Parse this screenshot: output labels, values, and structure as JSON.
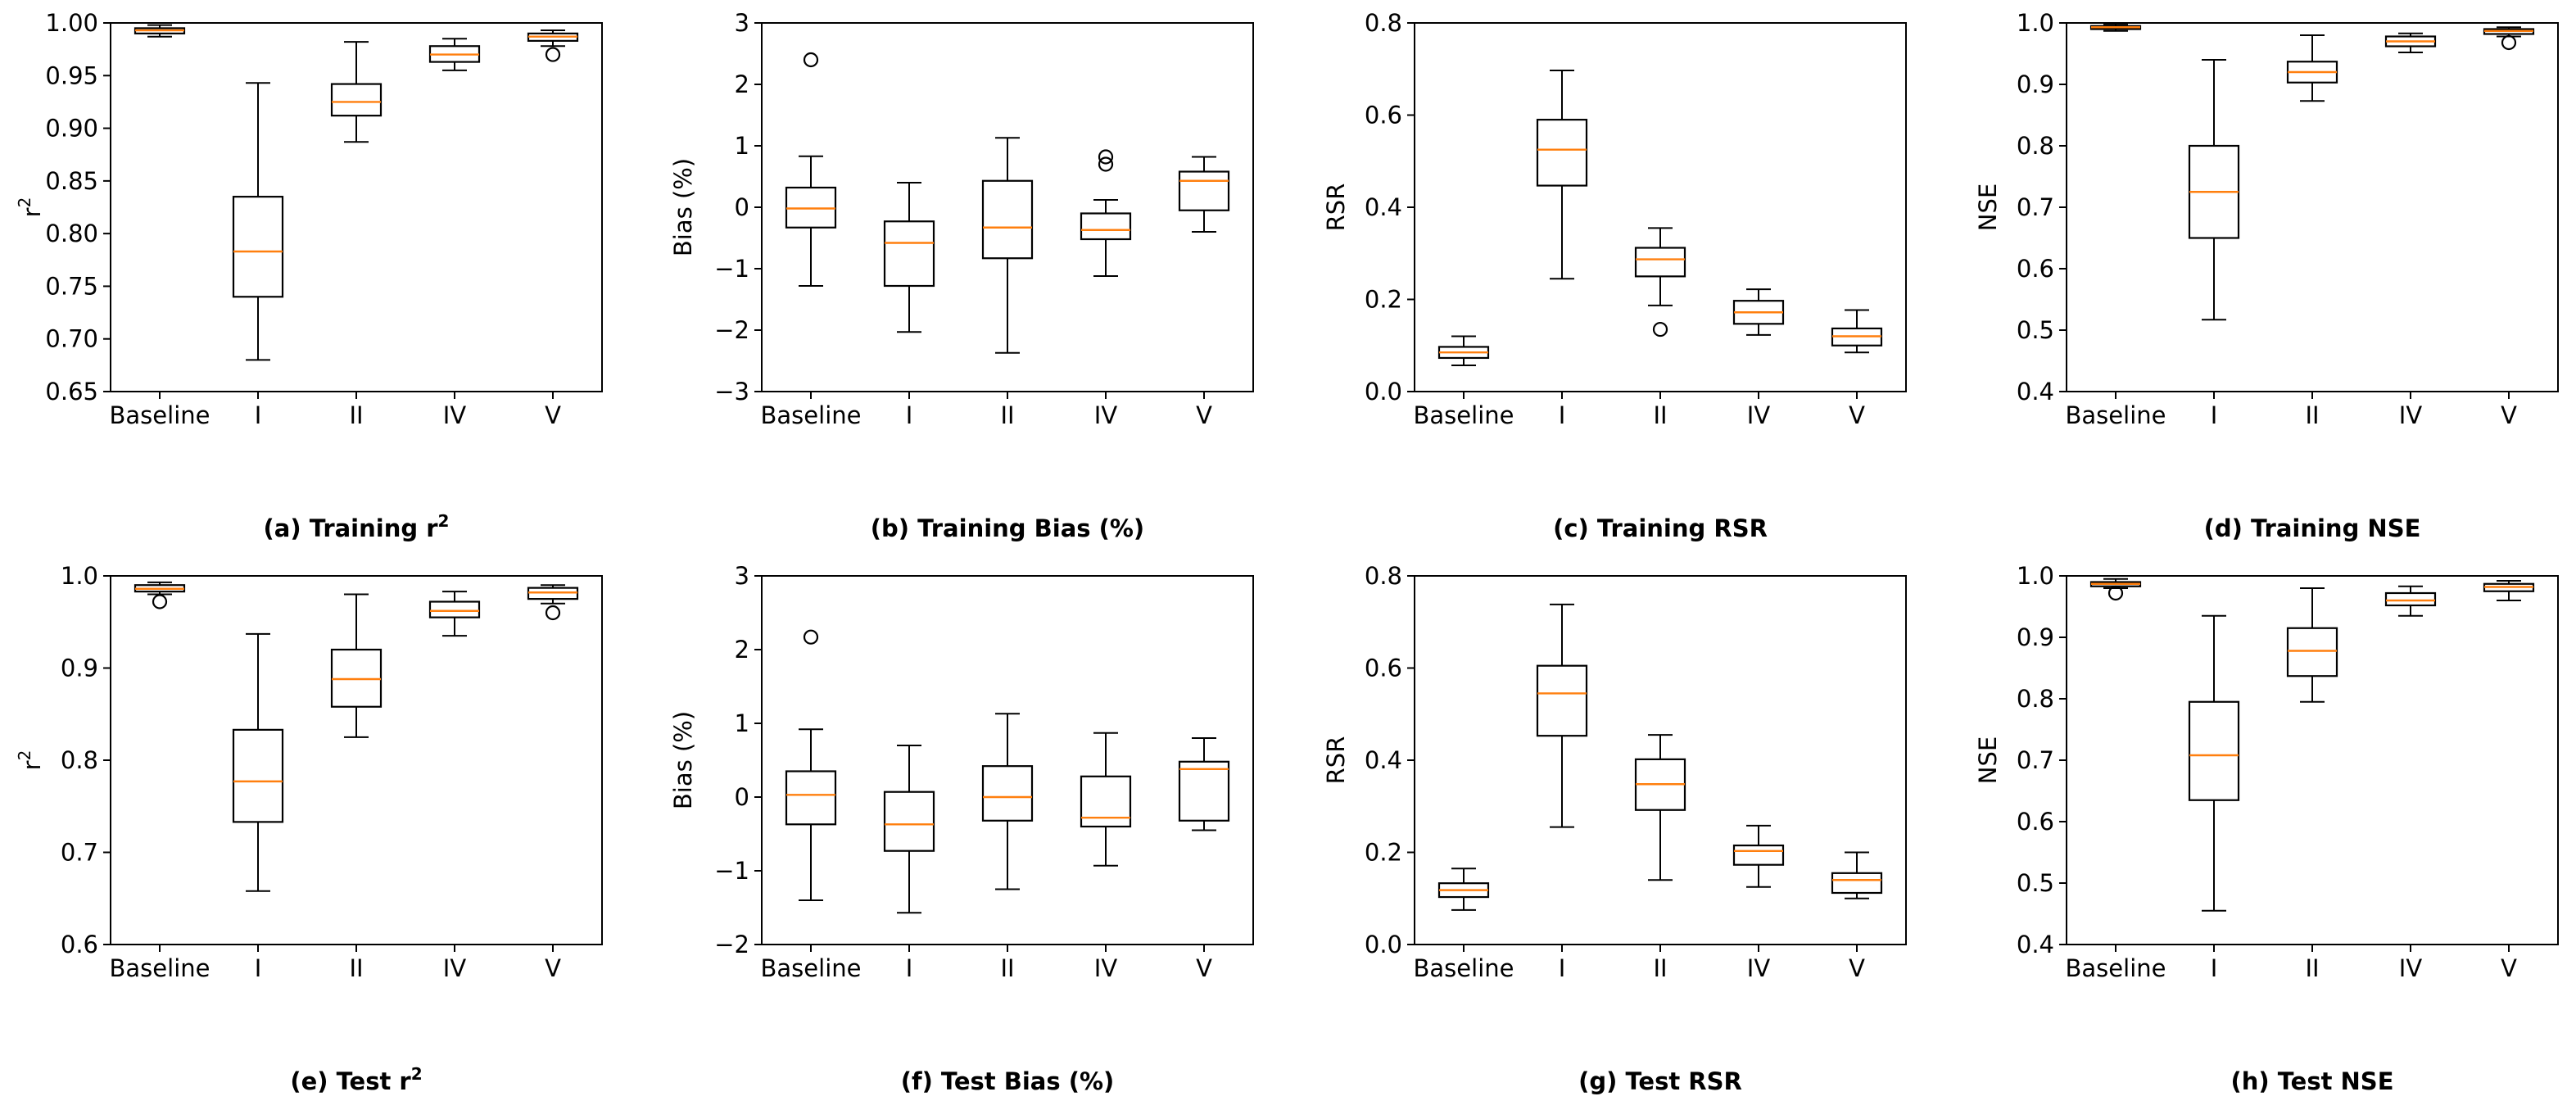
{
  "figure": {
    "panel_count": 8,
    "box_color": "#000000",
    "median_color": "#ff7f0e"
  },
  "chart_data": [
    {
      "id": "a",
      "type": "boxplot",
      "caption": "(a) Training r",
      "caption_sup": "2",
      "ylabel": "r",
      "ylabel_sup": "2",
      "ylim": [
        0.65,
        1.0
      ],
      "yticks": [
        0.65,
        0.7,
        0.75,
        0.8,
        0.85,
        0.9,
        0.95,
        1.0
      ],
      "ytick_labels": [
        "0.65",
        "0.70",
        "0.75",
        "0.80",
        "0.85",
        "0.90",
        "0.95",
        "1.00"
      ],
      "categories": [
        "Baseline",
        "I",
        "II",
        "IV",
        "V"
      ],
      "boxes": [
        {
          "wlo": 0.987,
          "q1": 0.99,
          "med": 0.993,
          "q3": 0.995,
          "whi": 0.998,
          "outliers": []
        },
        {
          "wlo": 0.68,
          "q1": 0.74,
          "med": 0.783,
          "q3": 0.835,
          "whi": 0.943,
          "outliers": []
        },
        {
          "wlo": 0.887,
          "q1": 0.912,
          "med": 0.925,
          "q3": 0.942,
          "whi": 0.982,
          "outliers": []
        },
        {
          "wlo": 0.955,
          "q1": 0.963,
          "med": 0.97,
          "q3": 0.978,
          "whi": 0.985,
          "outliers": []
        },
        {
          "wlo": 0.978,
          "q1": 0.983,
          "med": 0.987,
          "q3": 0.99,
          "whi": 0.993,
          "outliers": [
            0.97
          ]
        }
      ]
    },
    {
      "id": "b",
      "type": "boxplot",
      "caption": "(b) Training Bias (%)",
      "ylabel": "Bias (%)",
      "ylim": [
        -3,
        3
      ],
      "yticks": [
        -3,
        -2,
        -1,
        0,
        1,
        2,
        3
      ],
      "ytick_labels": [
        "−3",
        "−2",
        "−1",
        "0",
        "1",
        "2",
        "3"
      ],
      "categories": [
        "Baseline",
        "I",
        "II",
        "IV",
        "V"
      ],
      "boxes": [
        {
          "wlo": -1.28,
          "q1": -0.33,
          "med": -0.02,
          "q3": 0.32,
          "whi": 0.83,
          "outliers": [
            2.4
          ]
        },
        {
          "wlo": -2.03,
          "q1": -1.28,
          "med": -0.58,
          "q3": -0.23,
          "whi": 0.4,
          "outliers": []
        },
        {
          "wlo": -2.37,
          "q1": -0.83,
          "med": -0.33,
          "q3": 0.43,
          "whi": 1.13,
          "outliers": []
        },
        {
          "wlo": -1.12,
          "q1": -0.52,
          "med": -0.37,
          "q3": -0.1,
          "whi": 0.12,
          "outliers": [
            0.7,
            0.82
          ]
        },
        {
          "wlo": -0.4,
          "q1": -0.05,
          "med": 0.43,
          "q3": 0.58,
          "whi": 0.82,
          "outliers": []
        }
      ]
    },
    {
      "id": "c",
      "type": "boxplot",
      "caption": "(c) Training RSR",
      "ylabel": "RSR",
      "ylim": [
        0.0,
        0.8
      ],
      "yticks": [
        0.0,
        0.2,
        0.4,
        0.6,
        0.8
      ],
      "ytick_labels": [
        "0.0",
        "0.2",
        "0.4",
        "0.6",
        "0.8"
      ],
      "categories": [
        "Baseline",
        "I",
        "II",
        "IV",
        "V"
      ],
      "boxes": [
        {
          "wlo": 0.057,
          "q1": 0.073,
          "med": 0.085,
          "q3": 0.097,
          "whi": 0.12,
          "outliers": []
        },
        {
          "wlo": 0.245,
          "q1": 0.447,
          "med": 0.525,
          "q3": 0.59,
          "whi": 0.697,
          "outliers": []
        },
        {
          "wlo": 0.187,
          "q1": 0.25,
          "med": 0.287,
          "q3": 0.312,
          "whi": 0.355,
          "outliers": [
            0.135
          ]
        },
        {
          "wlo": 0.123,
          "q1": 0.147,
          "med": 0.172,
          "q3": 0.197,
          "whi": 0.222,
          "outliers": []
        },
        {
          "wlo": 0.085,
          "q1": 0.1,
          "med": 0.12,
          "q3": 0.137,
          "whi": 0.177,
          "outliers": []
        }
      ]
    },
    {
      "id": "d",
      "type": "boxplot",
      "caption": "(d) Training NSE",
      "ylabel": "NSE",
      "ylim": [
        0.4,
        1.0
      ],
      "yticks": [
        0.4,
        0.5,
        0.6,
        0.7,
        0.8,
        0.9,
        1.0
      ],
      "ytick_labels": [
        "0.4",
        "0.5",
        "0.6",
        "0.7",
        "0.8",
        "0.9",
        "1.0"
      ],
      "categories": [
        "Baseline",
        "I",
        "II",
        "IV",
        "V"
      ],
      "boxes": [
        {
          "wlo": 0.987,
          "q1": 0.99,
          "med": 0.993,
          "q3": 0.995,
          "whi": 0.998,
          "outliers": []
        },
        {
          "wlo": 0.517,
          "q1": 0.65,
          "med": 0.725,
          "q3": 0.8,
          "whi": 0.94,
          "outliers": []
        },
        {
          "wlo": 0.873,
          "q1": 0.903,
          "med": 0.92,
          "q3": 0.937,
          "whi": 0.98,
          "outliers": []
        },
        {
          "wlo": 0.952,
          "q1": 0.962,
          "med": 0.97,
          "q3": 0.978,
          "whi": 0.983,
          "outliers": []
        },
        {
          "wlo": 0.978,
          "q1": 0.982,
          "med": 0.987,
          "q3": 0.99,
          "whi": 0.993,
          "outliers": [
            0.968
          ]
        }
      ]
    },
    {
      "id": "e",
      "type": "boxplot",
      "caption": "(e) Test r",
      "caption_sup": "2",
      "ylabel": "r",
      "ylabel_sup": "2",
      "ylim": [
        0.6,
        1.0
      ],
      "yticks": [
        0.6,
        0.7,
        0.8,
        0.9,
        1.0
      ],
      "ytick_labels": [
        "0.6",
        "0.7",
        "0.8",
        "0.9",
        "1.0"
      ],
      "categories": [
        "Baseline",
        "I",
        "II",
        "IV",
        "V"
      ],
      "boxes": [
        {
          "wlo": 0.98,
          "q1": 0.983,
          "med": 0.986,
          "q3": 0.99,
          "whi": 0.993,
          "outliers": [
            0.972
          ]
        },
        {
          "wlo": 0.658,
          "q1": 0.733,
          "med": 0.777,
          "q3": 0.833,
          "whi": 0.937,
          "outliers": []
        },
        {
          "wlo": 0.825,
          "q1": 0.858,
          "med": 0.888,
          "q3": 0.92,
          "whi": 0.98,
          "outliers": []
        },
        {
          "wlo": 0.935,
          "q1": 0.955,
          "med": 0.962,
          "q3": 0.972,
          "whi": 0.983,
          "outliers": []
        },
        {
          "wlo": 0.97,
          "q1": 0.975,
          "med": 0.982,
          "q3": 0.987,
          "whi": 0.99,
          "outliers": [
            0.96
          ]
        }
      ]
    },
    {
      "id": "f",
      "type": "boxplot",
      "caption": "(f) Test Bias (%)",
      "ylabel": "Bias (%)",
      "ylim": [
        -2,
        3
      ],
      "yticks": [
        -2,
        -1,
        0,
        1,
        2,
        3
      ],
      "ytick_labels": [
        "−2",
        "−1",
        "0",
        "1",
        "2",
        "3"
      ],
      "categories": [
        "Baseline",
        "I",
        "II",
        "IV",
        "V"
      ],
      "boxes": [
        {
          "wlo": -1.4,
          "q1": -0.37,
          "med": 0.03,
          "q3": 0.35,
          "whi": 0.92,
          "outliers": [
            2.17
          ]
        },
        {
          "wlo": -1.57,
          "q1": -0.73,
          "med": -0.37,
          "q3": 0.07,
          "whi": 0.7,
          "outliers": []
        },
        {
          "wlo": -1.25,
          "q1": -0.32,
          "med": 0.0,
          "q3": 0.42,
          "whi": 1.13,
          "outliers": []
        },
        {
          "wlo": -0.93,
          "q1": -0.4,
          "med": -0.28,
          "q3": 0.28,
          "whi": 0.87,
          "outliers": []
        },
        {
          "wlo": -0.45,
          "q1": -0.32,
          "med": 0.38,
          "q3": 0.48,
          "whi": 0.8,
          "outliers": []
        }
      ]
    },
    {
      "id": "g",
      "type": "boxplot",
      "caption": "(g) Test RSR",
      "ylabel": "RSR",
      "ylim": [
        0.0,
        0.8
      ],
      "yticks": [
        0.0,
        0.2,
        0.4,
        0.6,
        0.8
      ],
      "ytick_labels": [
        "0.0",
        "0.2",
        "0.4",
        "0.6",
        "0.8"
      ],
      "categories": [
        "Baseline",
        "I",
        "II",
        "IV",
        "V"
      ],
      "boxes": [
        {
          "wlo": 0.075,
          "q1": 0.103,
          "med": 0.118,
          "q3": 0.133,
          "whi": 0.165,
          "outliers": []
        },
        {
          "wlo": 0.255,
          "q1": 0.453,
          "med": 0.545,
          "q3": 0.605,
          "whi": 0.738,
          "outliers": []
        },
        {
          "wlo": 0.14,
          "q1": 0.292,
          "med": 0.348,
          "q3": 0.402,
          "whi": 0.455,
          "outliers": []
        },
        {
          "wlo": 0.125,
          "q1": 0.173,
          "med": 0.203,
          "q3": 0.215,
          "whi": 0.258,
          "outliers": []
        },
        {
          "wlo": 0.1,
          "q1": 0.112,
          "med": 0.14,
          "q3": 0.155,
          "whi": 0.2,
          "outliers": []
        }
      ]
    },
    {
      "id": "h",
      "type": "boxplot",
      "caption": "(h) Test NSE",
      "ylabel": "NSE",
      "ylim": [
        0.4,
        1.0
      ],
      "yticks": [
        0.4,
        0.5,
        0.6,
        0.7,
        0.8,
        0.9,
        1.0
      ],
      "ytick_labels": [
        "0.4",
        "0.5",
        "0.6",
        "0.7",
        "0.8",
        "0.9",
        "1.0"
      ],
      "categories": [
        "Baseline",
        "I",
        "II",
        "IV",
        "V"
      ],
      "boxes": [
        {
          "wlo": 0.98,
          "q1": 0.983,
          "med": 0.987,
          "q3": 0.99,
          "whi": 0.995,
          "outliers": [
            0.972
          ]
        },
        {
          "wlo": 0.455,
          "q1": 0.635,
          "med": 0.708,
          "q3": 0.795,
          "whi": 0.935,
          "outliers": []
        },
        {
          "wlo": 0.795,
          "q1": 0.837,
          "med": 0.878,
          "q3": 0.915,
          "whi": 0.98,
          "outliers": []
        },
        {
          "wlo": 0.935,
          "q1": 0.952,
          "med": 0.96,
          "q3": 0.972,
          "whi": 0.983,
          "outliers": []
        },
        {
          "wlo": 0.96,
          "q1": 0.975,
          "med": 0.982,
          "q3": 0.987,
          "whi": 0.992,
          "outliers": []
        }
      ]
    }
  ]
}
